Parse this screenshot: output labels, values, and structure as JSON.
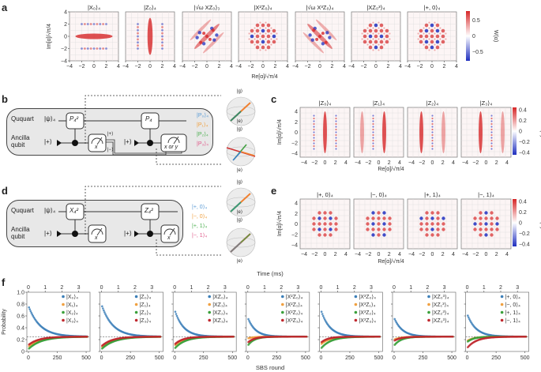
{
  "panels": {
    "a": {
      "label": "a",
      "titles": [
        "|X₀⟩₄",
        "|Z₀⟩₄",
        "|√ω XZ₀⟩₃",
        "|X²Z₀⟩₄",
        "|√ω X³Z₀⟩₄",
        "|XZ₀³⟩₄",
        "|+, 0⟩₄"
      ],
      "patterns": [
        "x-state",
        "z-state",
        "diag-pos",
        "grid",
        "diag-neg",
        "grid2",
        "grid3"
      ],
      "ylabel": "Im[α]/√π/4",
      "xlabel": "Re[α]/√π/4",
      "ticks": [
        "−4",
        "−2",
        "0",
        "2",
        "4"
      ],
      "colorbar": {
        "label": "W(α)",
        "ticks": [
          "0.5",
          "0",
          "−0.5"
        ],
        "range": [
          -0.7,
          0.7
        ]
      }
    },
    "b": {
      "label": "b",
      "rows": {
        "top": "Ququart",
        "bottom_1": "Ancilla",
        "bottom_2": "qubit"
      },
      "input_state": "|ψ⟩₄",
      "ancilla_state": "|+⟩",
      "gates": [
        "P₄²",
        "P₄"
      ],
      "meas": [
        "x",
        "x or y"
      ],
      "outcomes": [
        "|+⟩",
        "|−⟩"
      ],
      "states": [
        {
          "text": "|P₀⟩₄",
          "color": "#5b9bd5"
        },
        {
          "text": "|P₁⟩₄",
          "color": "#f0a040"
        },
        {
          "text": "|P₂⟩₄",
          "color": "#4caf50"
        },
        {
          "text": "|P₃⟩₄",
          "color": "#e05a8a"
        }
      ],
      "bloch": {
        "top": "|g⟩",
        "bottom": "|e⟩",
        "x": "x",
        "y": "y"
      }
    },
    "c": {
      "label": "c",
      "titles": [
        "|Z₀⟩₄",
        "|Z₁⟩₄",
        "|Z₂⟩₄",
        "|Z₃⟩₄"
      ],
      "centers": [
        0,
        1,
        2,
        3
      ],
      "ylabel": "Im[α]/√π/4",
      "xlabel": "Re[α]/√π/4",
      "ticks": [
        "−4",
        "−2",
        "0",
        "2",
        "4"
      ],
      "colorbar": {
        "label": "W(α)",
        "ticks": [
          "0.4",
          "0.2",
          "0",
          "−0.2",
          "−0.4"
        ],
        "range": [
          -0.4,
          0.4
        ]
      }
    },
    "d": {
      "label": "d",
      "rows": {
        "top": "Ququart",
        "bottom_1": "Ancilla",
        "bottom_2": "qubit"
      },
      "input_state": "|ψ⟩₄",
      "ancilla_state": "|+⟩",
      "gates": [
        "X₄²",
        "Z₄²"
      ],
      "meas": [
        "x",
        "x"
      ],
      "states": [
        {
          "text": "|+, 0⟩₄",
          "color": "#5b9bd5"
        },
        {
          "text": "|−, 0⟩₄",
          "color": "#f0a040"
        },
        {
          "text": "|+, 1⟩₄",
          "color": "#4caf50"
        },
        {
          "text": "|−, 1⟩₄",
          "color": "#e05a8a"
        }
      ],
      "bloch": {
        "top": "|g⟩",
        "bottom": "|e⟩",
        "x": "x",
        "y": "y"
      }
    },
    "e": {
      "label": "e",
      "titles": [
        "|+, 0⟩₄",
        "|−, 0⟩₄",
        "|+, 1⟩₄",
        "|−, 1⟩₄"
      ],
      "ylabel": "Im[α]/√π/4",
      "xlabel": "Re[α]/√π/4",
      "ticks": [
        "−4",
        "−2",
        "0",
        "2",
        "4"
      ],
      "colorbar": {
        "label": "W(α)",
        "ticks": [
          "0.4",
          "0.2",
          "0",
          "−0.2",
          "−0.4"
        ],
        "range": [
          -0.4,
          0.4
        ]
      }
    },
    "f": {
      "label": "f",
      "top_axis_label": "Time (ms)",
      "bottom_axis_label": "SBS round",
      "ylabel": "Probability"
    }
  },
  "colors": {
    "blue": "#3c7fb8",
    "orange": "#f0a040",
    "green": "#3aa03a",
    "red": "#c0282e",
    "wpos": "#d62728",
    "wneg": "#1f2fbf"
  },
  "chart_data": {
    "type": "scatter",
    "title": "f",
    "xlabel": "SBS round",
    "x2label": "Time (ms)",
    "ylabel": "Probability",
    "xlim": [
      0,
      520
    ],
    "x2ticks": [
      "0",
      "1",
      "2",
      "3"
    ],
    "xticks": [
      "0",
      "250",
      "500"
    ],
    "ylim": [
      0,
      1.0
    ],
    "yticks": [
      "0",
      "0.2",
      "0.4",
      "0.6",
      "0.8",
      "1.0"
    ],
    "dashed_reference": 0.25,
    "subplots": [
      {
        "legend": [
          "|X₀⟩₄",
          "|X₁⟩₄",
          "|X₂⟩₄",
          "|X₃⟩₄"
        ],
        "start": [
          0.77,
          0.08,
          0.04,
          0.11
        ],
        "tau": [
          100,
          100,
          110,
          90
        ]
      },
      {
        "legend": [
          "|Z₀⟩₄",
          "|Z₁⟩₄",
          "|Z₂⟩₄",
          "|Z₃⟩₄"
        ],
        "start": [
          0.79,
          0.07,
          0.04,
          0.09
        ],
        "tau": [
          95,
          100,
          110,
          90
        ]
      },
      {
        "legend": [
          "|XZ₀⟩₄",
          "|XZ₁⟩₄",
          "|XZ₂⟩₄",
          "|XZ₃⟩₄"
        ],
        "start": [
          0.7,
          0.1,
          0.05,
          0.12
        ],
        "tau": [
          75,
          80,
          90,
          70
        ]
      },
      {
        "legend": [
          "|X²Z₀⟩₄",
          "|X²Z₁⟩₄",
          "|X²Z₂⟩₄",
          "|X²Z₃⟩₄"
        ],
        "start": [
          0.57,
          0.22,
          0.1,
          0.15
        ],
        "tau": [
          65,
          50,
          55,
          55
        ]
      },
      {
        "legend": [
          "|X³Z₀⟩₄",
          "|X³Z₁⟩₄",
          "|X³Z₂⟩₄",
          "|X³Z₃⟩₄"
        ],
        "start": [
          0.7,
          0.12,
          0.05,
          0.15
        ],
        "tau": [
          75,
          70,
          85,
          60
        ]
      },
      {
        "legend": [
          "|XZ₀³⟩₄",
          "|XZ₁³⟩₄",
          "|XZ₂³⟩₄",
          "|XZ₃³⟩₄"
        ],
        "start": [
          0.57,
          0.2,
          0.1,
          0.18
        ],
        "tau": [
          70,
          60,
          60,
          60
        ]
      },
      {
        "legend": [
          "|+, 0⟩₄",
          "|−, 0⟩₄",
          "|+, 1⟩₄",
          "|−, 1⟩₄"
        ],
        "start": [
          0.63,
          0.18,
          0.16,
          0.06
        ],
        "tau": [
          75,
          60,
          55,
          80
        ]
      }
    ]
  }
}
